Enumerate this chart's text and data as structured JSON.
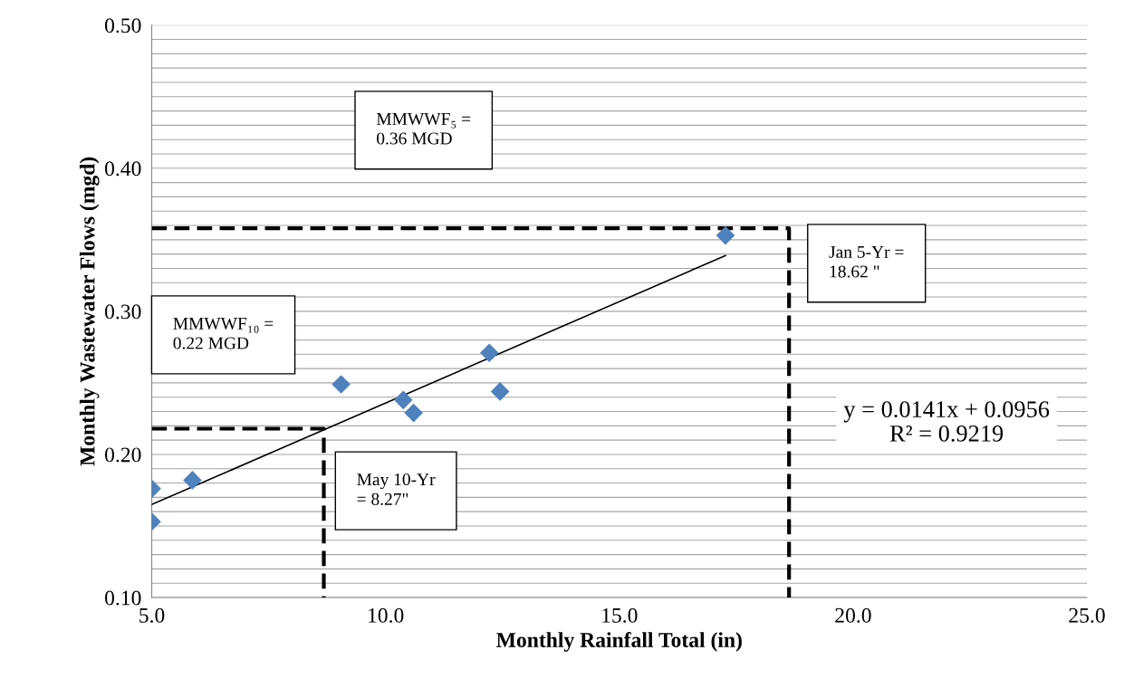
{
  "chart_data": {
    "type": "scatter",
    "xlabel": "Monthly Rainfall Total (in)",
    "ylabel": "Monthly Wastewater Flows (mgd)",
    "xlim": [
      5.0,
      25.0
    ],
    "xticks": [
      {
        "value": 5,
        "label": "5.0"
      },
      {
        "value": 10,
        "label": "10.0"
      },
      {
        "value": 15,
        "label": "15.0"
      },
      {
        "value": 20,
        "label": "20.0"
      },
      {
        "value": 25,
        "label": "25.0"
      }
    ],
    "ylim": [
      0.1,
      0.5
    ],
    "yticks": [
      {
        "value": 0.1,
        "label": "0.10"
      },
      {
        "value": 0.11,
        "label": null
      },
      {
        "value": 0.12,
        "label": null
      },
      {
        "value": 0.13,
        "label": null
      },
      {
        "value": 0.14,
        "label": null
      },
      {
        "value": 0.15,
        "label": null
      },
      {
        "value": 0.16,
        "label": null
      },
      {
        "value": 0.17,
        "label": null
      },
      {
        "value": 0.18,
        "label": null
      },
      {
        "value": 0.19,
        "label": null
      },
      {
        "value": 0.2,
        "label": "0.20"
      },
      {
        "value": 0.21,
        "label": null
      },
      {
        "value": 0.22,
        "label": null
      },
      {
        "value": 0.23,
        "label": null
      },
      {
        "value": 0.24,
        "label": null
      },
      {
        "value": 0.25,
        "label": null
      },
      {
        "value": 0.26,
        "label": null
      },
      {
        "value": 0.27,
        "label": null
      },
      {
        "value": 0.28,
        "label": null
      },
      {
        "value": 0.29,
        "label": null
      },
      {
        "value": 0.3,
        "label": "0.30"
      },
      {
        "value": 0.31,
        "label": null
      },
      {
        "value": 0.32,
        "label": null
      },
      {
        "value": 0.33,
        "label": null
      },
      {
        "value": 0.34,
        "label": null
      },
      {
        "value": 0.35,
        "label": null
      },
      {
        "value": 0.36,
        "label": null
      },
      {
        "value": 0.37,
        "label": null
      },
      {
        "value": 0.38,
        "label": null
      },
      {
        "value": 0.39,
        "label": null
      },
      {
        "value": 0.4,
        "label": "0.40"
      },
      {
        "value": 0.41,
        "label": null
      },
      {
        "value": 0.42,
        "label": null
      },
      {
        "value": 0.43,
        "label": null
      },
      {
        "value": 0.44,
        "label": null
      },
      {
        "value": 0.45,
        "label": null
      },
      {
        "value": 0.46,
        "label": null
      },
      {
        "value": 0.47,
        "label": null
      },
      {
        "value": 0.48,
        "label": null
      },
      {
        "value": 0.49,
        "label": null
      },
      {
        "value": 0.5,
        "label": "0.50"
      }
    ],
    "grid": "y",
    "marker": "diamond",
    "series": [
      {
        "color": "#4f81bd",
        "x": [
          5.0,
          5.0,
          5.87,
          9.05,
          10.38,
          10.6,
          12.22,
          12.45,
          17.27
        ],
        "values": [
          0.176,
          0.153,
          0.182,
          0.249,
          0.238,
          0.229,
          0.271,
          0.244,
          0.353
        ]
      },
      {
        "type": "line",
        "color": "#000000",
        "marker": "none",
        "line_style": "solid",
        "x": [
          5.0,
          17.27
        ],
        "values": [
          0.165,
          0.339
        ]
      },
      {
        "type": "line",
        "color": "#000000",
        "marker": "none",
        "line_style": "dashed",
        "x": [
          5.0,
          18.63,
          18.63
        ],
        "values": [
          0.358,
          0.358,
          0.1
        ]
      },
      {
        "type": "line",
        "color": "#000000",
        "marker": "none",
        "line_style": "dashed",
        "x": [
          5.0,
          8.68,
          8.68
        ],
        "values": [
          0.218,
          0.218,
          0.1
        ]
      }
    ],
    "annotations": [
      "MMWWF₅ =\n0.36 MGD",
      "MMWWF₁₀ =\n0.22 MGD",
      "May 10-Yr\n= 8.27\"",
      "Jan 5-Yr =\n18.62 \"",
      "y = 0.0141x + 0.0956\nR² = 0.9219"
    ]
  }
}
